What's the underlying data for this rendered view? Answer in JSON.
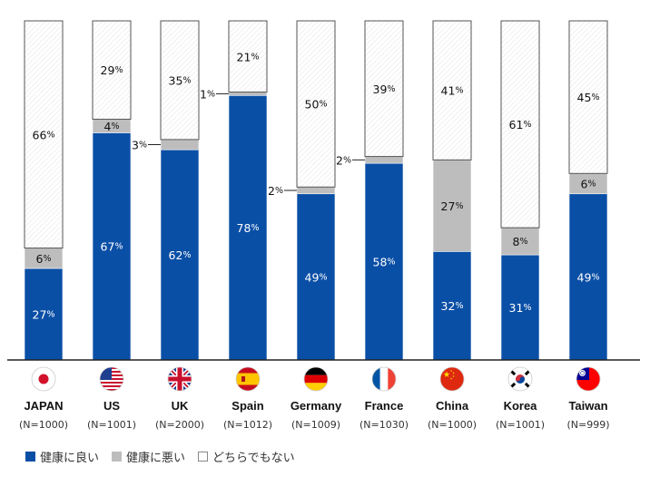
{
  "chart_data": {
    "type": "bar",
    "stacked": true,
    "percent": true,
    "categories": [
      "JAPAN",
      "US",
      "UK",
      "Spain",
      "Germany",
      "France",
      "China",
      "Korea",
      "Taiwan"
    ],
    "sample_sizes": [
      "(N=1000)",
      "(N=1001)",
      "(N=2000)",
      "(N=1012)",
      "(N=1009)",
      "(N=1030)",
      "(N=1000)",
      "(N=1001)",
      "(N=999)"
    ],
    "flag_icons": [
      "japan-flag-icon",
      "us-flag-icon",
      "uk-flag-icon",
      "spain-flag-icon",
      "germany-flag-icon",
      "france-flag-icon",
      "china-flag-icon",
      "korea-flag-icon",
      "taiwan-flag-icon"
    ],
    "series": [
      {
        "name": "健康に良い",
        "color": "#0a4fa6",
        "values": [
          27,
          67,
          62,
          78,
          49,
          58,
          32,
          31,
          49
        ]
      },
      {
        "name": "健康に悪い",
        "color": "#bdbdbd",
        "values": [
          6,
          4,
          3,
          1,
          2,
          2,
          27,
          8,
          6
        ]
      },
      {
        "name": "どちらでもない",
        "color": "#ffffff",
        "values": [
          66,
          29,
          35,
          21,
          50,
          39,
          41,
          61,
          45
        ]
      }
    ],
    "value_suffix": "%",
    "ylim": [
      0,
      100
    ],
    "legend_position": "bottom-left"
  }
}
